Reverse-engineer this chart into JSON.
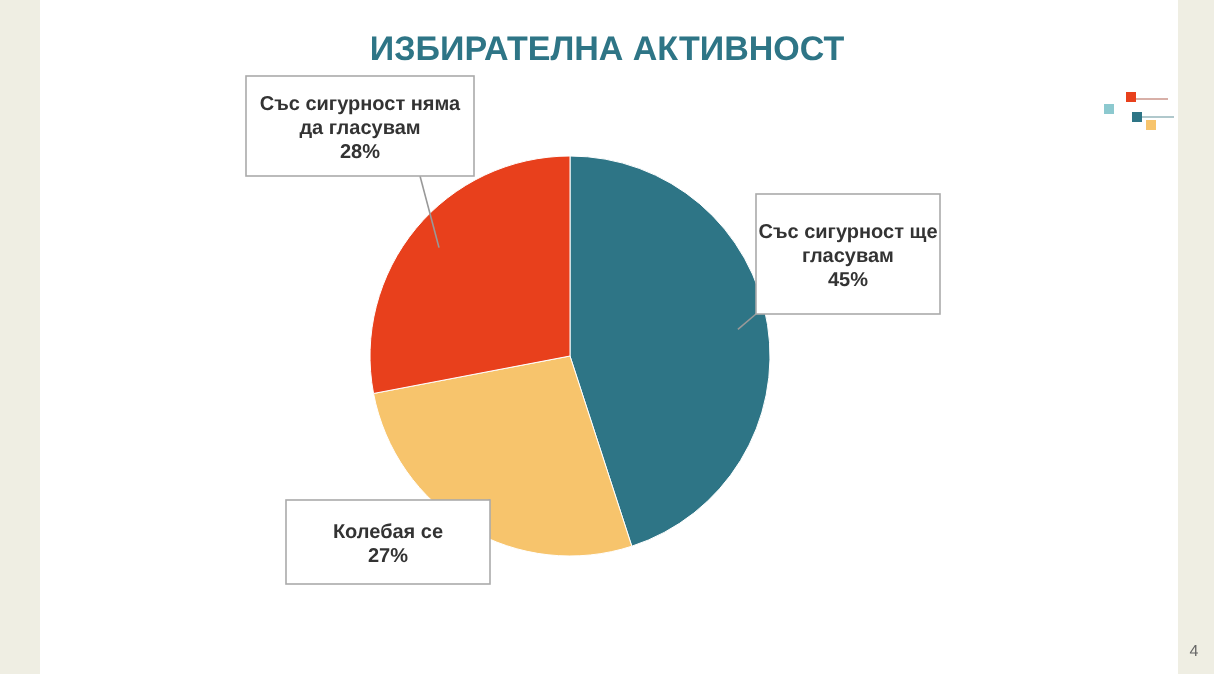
{
  "chart_data": {
    "type": "pie",
    "title": "ИЗБИРАТЕЛНА АКТИВНОСТ",
    "categories": [
      "Със сигурност ще гласувам",
      "Колебая се",
      "Със сигурност няма да гласувам"
    ],
    "values": [
      45,
      27,
      28
    ],
    "colors": [
      "#2e7586",
      "#f7c46c",
      "#e8401c"
    ],
    "value_labels": [
      "45%",
      "27%",
      "28%"
    ],
    "annotations": [
      "4"
    ]
  }
}
